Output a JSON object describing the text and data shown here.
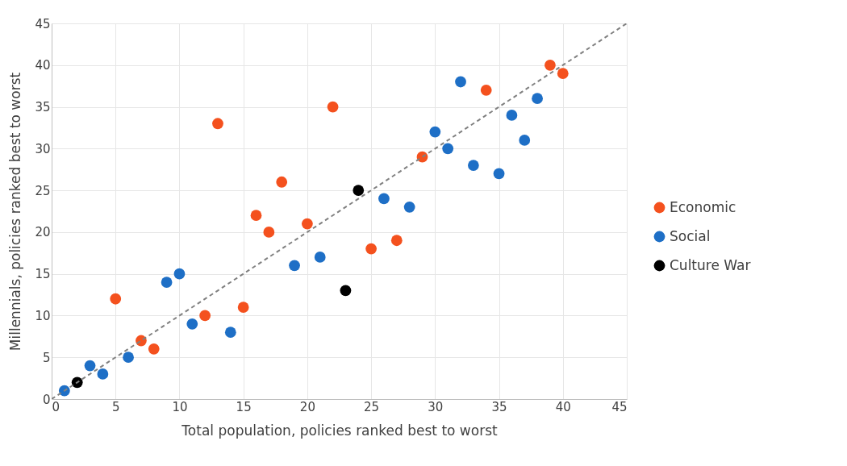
{
  "chart_data": {
    "type": "scatter",
    "xlabel": "Total population, policies ranked best to worst",
    "ylabel": "Millennials, policies ranked best to worst",
    "xlim": [
      0,
      45
    ],
    "ylim": [
      0,
      45
    ],
    "xticks": [
      0,
      5,
      10,
      15,
      20,
      25,
      30,
      35,
      40,
      45
    ],
    "yticks": [
      0,
      5,
      10,
      15,
      20,
      25,
      30,
      35,
      40,
      45
    ],
    "grid": true,
    "legend": "right",
    "marker": "circle",
    "series": [
      {
        "name": "Economic",
        "color": "#f4511e",
        "x": [
          5,
          7,
          8,
          12,
          13,
          15,
          16,
          17,
          18,
          20,
          22,
          25,
          27,
          29,
          34,
          39,
          40
        ],
        "values": [
          12,
          7,
          6,
          10,
          33,
          11,
          22,
          20,
          26,
          21,
          35,
          18,
          19,
          29,
          37,
          40,
          39
        ]
      },
      {
        "name": "Social",
        "color": "#1e6fc6",
        "x": [
          1,
          3,
          4,
          6,
          9,
          10,
          11,
          14,
          19,
          21,
          26,
          28,
          30,
          31,
          32,
          33,
          35,
          36,
          37,
          38
        ],
        "values": [
          1,
          4,
          3,
          5,
          14,
          15,
          9,
          8,
          16,
          17,
          24,
          23,
          32,
          30,
          38,
          28,
          27,
          34,
          31,
          36
        ]
      },
      {
        "name": "Culture War",
        "color": "#000000",
        "x": [
          2,
          23,
          24
        ],
        "values": [
          2,
          13,
          25
        ]
      },
      {
        "type": "line",
        "color": "#808080",
        "line_style": "dashed",
        "marker": "none",
        "x": [
          0,
          45
        ],
        "values": [
          0,
          45
        ]
      }
    ]
  }
}
